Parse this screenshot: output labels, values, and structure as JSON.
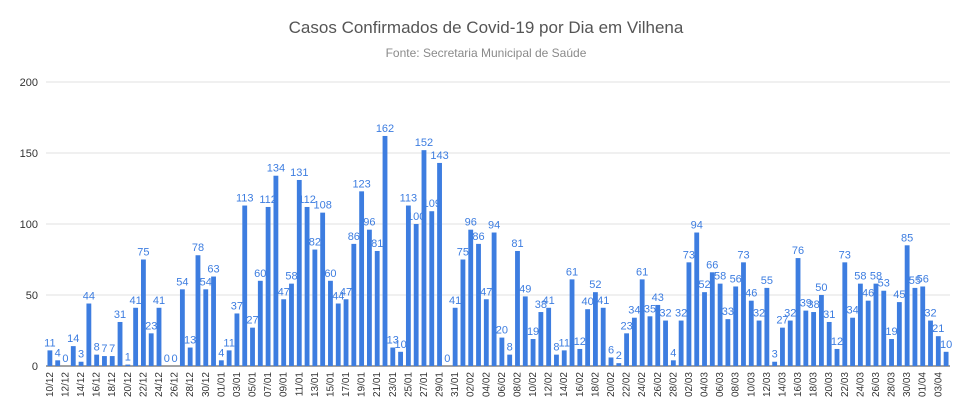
{
  "chart_data": {
    "type": "bar",
    "title": "Casos Confirmados de Covid-19 por Dia em Vilhena",
    "subtitle": "Fonte: Secretaria Municipal de Saúde",
    "xlabel": "",
    "ylabel": "",
    "ylim": [
      0,
      200
    ],
    "yticks": [
      0,
      50,
      100,
      150,
      200
    ],
    "grid": true,
    "color": "#3d7de0",
    "categories": [
      "10/12",
      "11/12",
      "12/12",
      "13/12",
      "14/12",
      "15/12",
      "16/12",
      "17/12",
      "18/12",
      "19/12",
      "20/12",
      "21/12",
      "22/12",
      "23/12",
      "24/12",
      "25/12",
      "26/12",
      "27/12",
      "28/12",
      "29/12",
      "30/12",
      "31/12",
      "01/01",
      "02/01",
      "03/01",
      "04/01",
      "05/01",
      "06/01",
      "07/01",
      "08/01",
      "09/01",
      "10/01",
      "11/01",
      "12/01",
      "13/01",
      "14/01",
      "15/01",
      "16/01",
      "17/01",
      "18/01",
      "19/01",
      "20/01",
      "21/01",
      "22/01",
      "23/01",
      "24/01",
      "25/01",
      "26/01",
      "27/01",
      "28/01",
      "29/01",
      "30/01",
      "31/01",
      "01/02",
      "02/02",
      "03/02",
      "04/02",
      "05/02",
      "06/02",
      "07/02",
      "08/02",
      "09/02",
      "10/02",
      "11/02",
      "12/02",
      "13/02",
      "14/02",
      "15/02",
      "16/02",
      "17/02",
      "18/02",
      "19/02",
      "20/02",
      "21/02",
      "22/02",
      "23/02",
      "24/02",
      "25/02",
      "26/02",
      "27/02",
      "28/02",
      "01/03",
      "02/03",
      "03/03",
      "04/03",
      "05/03",
      "06/03",
      "07/03",
      "08/03",
      "09/03",
      "10/03",
      "11/03",
      "12/03",
      "13/03",
      "14/03",
      "15/03",
      "16/03",
      "17/03",
      "18/03",
      "19/03",
      "20/03",
      "21/03",
      "22/03",
      "23/03",
      "24/03",
      "25/03",
      "26/03",
      "27/03",
      "28/03",
      "29/03",
      "30/03",
      "31/03",
      "01/04",
      "02/04",
      "03/04",
      "04/04"
    ],
    "tick_labels": [
      "10/12",
      "12/12",
      "14/12",
      "16/12",
      "18/12",
      "20/12",
      "22/12",
      "24/12",
      "26/12",
      "28/12",
      "30/12",
      "01/01",
      "03/01",
      "05/01",
      "07/01",
      "09/01",
      "11/01",
      "13/01",
      "15/01",
      "17/01",
      "19/01",
      "21/01",
      "23/01",
      "25/01",
      "27/01",
      "29/01",
      "31/01",
      "02/02",
      "04/02",
      "06/02",
      "08/02",
      "10/02",
      "12/02",
      "14/02",
      "16/02",
      "18/02",
      "20/02",
      "22/02",
      "24/02",
      "26/02",
      "28/02",
      "02/03",
      "04/03",
      "06/03",
      "08/03",
      "10/03",
      "12/03",
      "14/03",
      "16/03",
      "18/03",
      "20/03",
      "22/03",
      "24/03",
      "26/03",
      "28/03",
      "30/03",
      "01/04",
      "03/04"
    ],
    "values": [
      11,
      4,
      0,
      14,
      3,
      44,
      8,
      7,
      7,
      31,
      1,
      41,
      75,
      23,
      41,
      0,
      0,
      54,
      13,
      78,
      54,
      63,
      4,
      11,
      37,
      113,
      27,
      60,
      112,
      134,
      47,
      58,
      131,
      112,
      82,
      108,
      60,
      44,
      47,
      86,
      123,
      96,
      81,
      162,
      13,
      10,
      113,
      100,
      152,
      109,
      143,
      0,
      41,
      75,
      96,
      86,
      47,
      94,
      20,
      8,
      81,
      49,
      19,
      38,
      41,
      8,
      11,
      61,
      12,
      40,
      52,
      41,
      6,
      2,
      23,
      34,
      61,
      35,
      43,
      32,
      4,
      32,
      73,
      94,
      52,
      66,
      58,
      33,
      56,
      73,
      46,
      32,
      55,
      3,
      27,
      32,
      76,
      39,
      38,
      50,
      31,
      12,
      73,
      34,
      58,
      46,
      58,
      53,
      19,
      45,
      85,
      55,
      56,
      32,
      21,
      10
    ]
  }
}
